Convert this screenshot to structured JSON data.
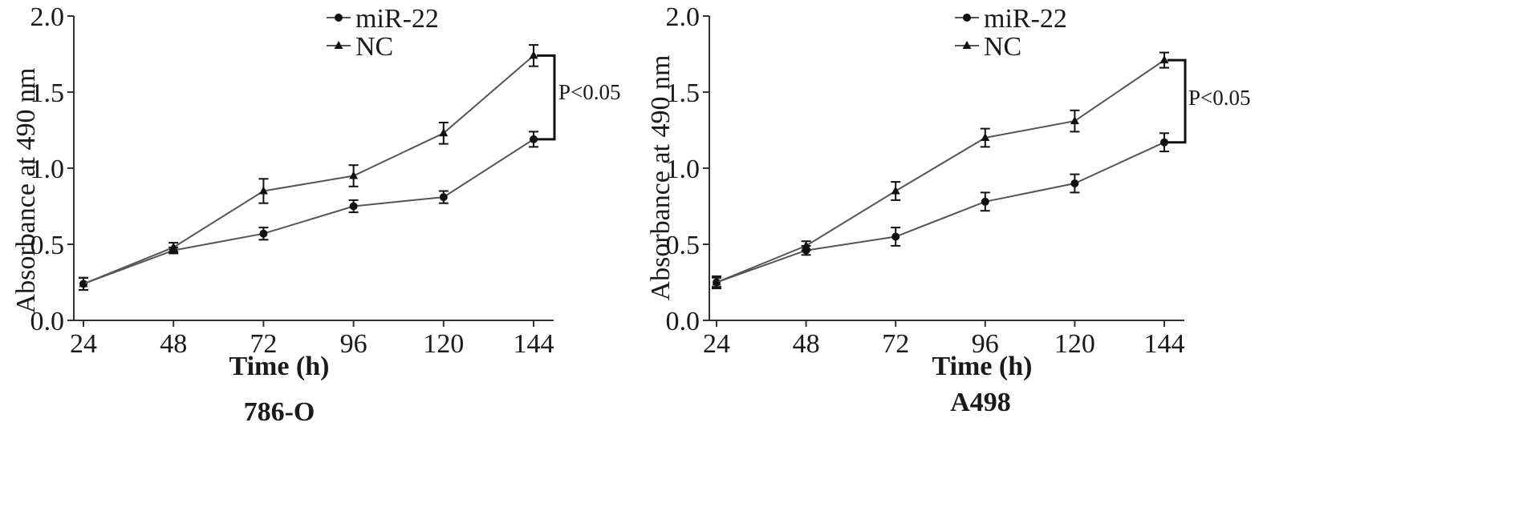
{
  "chart_data": [
    {
      "type": "line",
      "panel_label": "786-O",
      "xlabel": "Time (h)",
      "ylabel": "Absorbance at 490 nm",
      "x": [
        24,
        48,
        72,
        96,
        120,
        144
      ],
      "x_ticks": [
        "24",
        "48",
        "72",
        "96",
        "120",
        "144"
      ],
      "ylim": [
        0,
        2.0
      ],
      "y_ticks": [
        "0.0",
        "0.5",
        "1.0",
        "1.5",
        "2.0"
      ],
      "legend_position": "top-center",
      "series": [
        {
          "name": "miR-22",
          "marker": "circle",
          "values": [
            0.24,
            0.46,
            0.57,
            0.75,
            0.81,
            1.19
          ],
          "errors": [
            0.04,
            0.02,
            0.04,
            0.04,
            0.04,
            0.05
          ]
        },
        {
          "name": "NC",
          "marker": "triangle",
          "values": [
            0.24,
            0.48,
            0.85,
            0.95,
            1.23,
            1.74
          ],
          "errors": [
            0.04,
            0.03,
            0.08,
            0.07,
            0.07,
            0.07
          ]
        }
      ],
      "significance": "P<0.05"
    },
    {
      "type": "line",
      "panel_label": "A498",
      "xlabel": "Time (h)",
      "ylabel": "Absorbance at 490 nm",
      "x": [
        24,
        48,
        72,
        96,
        120,
        144
      ],
      "x_ticks": [
        "24",
        "48",
        "72",
        "96",
        "120",
        "144"
      ],
      "ylim": [
        0,
        2.0
      ],
      "y_ticks": [
        "0.0",
        "0.5",
        "1.0",
        "1.5",
        "2.0"
      ],
      "legend_position": "top-center",
      "series": [
        {
          "name": "miR-22",
          "marker": "circle",
          "values": [
            0.25,
            0.46,
            0.55,
            0.78,
            0.9,
            1.17
          ],
          "errors": [
            0.03,
            0.03,
            0.06,
            0.06,
            0.06,
            0.06
          ]
        },
        {
          "name": "NC",
          "marker": "triangle",
          "values": [
            0.25,
            0.49,
            0.85,
            1.2,
            1.31,
            1.71
          ],
          "errors": [
            0.04,
            0.03,
            0.06,
            0.06,
            0.07,
            0.05
          ]
        }
      ],
      "significance": "P<0.05"
    }
  ],
  "colors": {
    "line": "#555555",
    "marker": "#111111",
    "axis": "#333333",
    "text": "#1a1a1a"
  }
}
